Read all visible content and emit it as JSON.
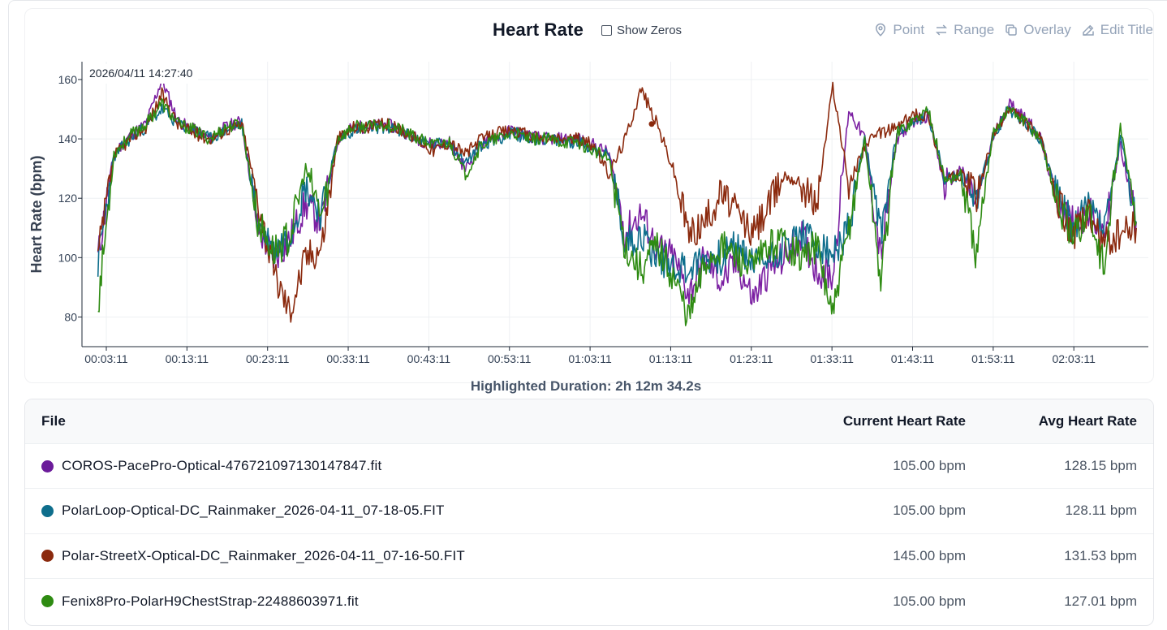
{
  "header": {
    "title": "Heart Rate",
    "show_zeros_label": "Show Zeros",
    "show_zeros_checked": false
  },
  "toolbar": {
    "point_label": "Point",
    "range_label": "Range",
    "overlay_label": "Overlay",
    "edit_title_label": "Edit Title"
  },
  "tooltip": {
    "timestamp": "2026/04/11 14:27:40"
  },
  "duration": {
    "text": "Highlighted Duration: 2h 12m 34.2s"
  },
  "chart_data": {
    "type": "line",
    "ylabel": "Heart Rate (bpm)",
    "xlabel": "",
    "ylim": [
      70,
      166
    ],
    "yticks": [
      80,
      100,
      120,
      140,
      160
    ],
    "xticks": [
      "00:03:11",
      "00:13:11",
      "00:23:11",
      "00:33:11",
      "00:43:11",
      "00:53:11",
      "01:03:11",
      "01:13:11",
      "01:23:11",
      "01:33:11",
      "01:43:11",
      "01:53:11",
      "02:03:11"
    ],
    "x_minutes": [
      2,
      4,
      6,
      8,
      10,
      12,
      14,
      16,
      18,
      20,
      22,
      24,
      26,
      28,
      30,
      32,
      34,
      36,
      38,
      40,
      42,
      44,
      46,
      48,
      50,
      52,
      54,
      56,
      58,
      60,
      62,
      64,
      66,
      68,
      70,
      72,
      74,
      76,
      78,
      80,
      82,
      84,
      86,
      88,
      90,
      92,
      94,
      96,
      98,
      100,
      102,
      104,
      106,
      108,
      110,
      112,
      114,
      116,
      118,
      120,
      122,
      124,
      126,
      128,
      130,
      132
    ],
    "grid": true,
    "legend": "table-below",
    "series": [
      {
        "name": "COROS-PacePro-Optical-4767210971301478​47.fit",
        "color": "#7b1fa2",
        "values": [
          100,
          135,
          141,
          145,
          160,
          146,
          143,
          140,
          144,
          146,
          110,
          100,
          106,
          118,
          112,
          140,
          144,
          144,
          145,
          143,
          140,
          138,
          139,
          130,
          138,
          141,
          143,
          141,
          140,
          140,
          140,
          138,
          135,
          108,
          115,
          103,
          100,
          88,
          100,
          92,
          98,
          86,
          96,
          100,
          108,
          96,
          94,
          150,
          140,
          100,
          140,
          146,
          148,
          124,
          130,
          118,
          140,
          152,
          148,
          140,
          120,
          112,
          115,
          108,
          138,
          112
        ]
      },
      {
        "name": "PolarLoop-Optical-DC_Rainmaker_2026-04-11_07-18-05.FIT",
        "color": "#0e6e8c",
        "values": [
          98,
          134,
          140,
          144,
          150,
          145,
          143,
          140,
          143,
          145,
          112,
          102,
          108,
          124,
          115,
          140,
          143,
          144,
          144,
          142,
          140,
          138,
          139,
          132,
          138,
          140,
          142,
          140,
          140,
          139,
          139,
          137,
          134,
          105,
          108,
          100,
          98,
          96,
          100,
          100,
          104,
          98,
          100,
          104,
          108,
          104,
          100,
          110,
          140,
          108,
          142,
          146,
          148,
          126,
          128,
          120,
          140,
          150,
          146,
          140,
          122,
          110,
          118,
          110,
          140,
          112
        ]
      },
      {
        "name": "Polar-StreetX-Optical-DC_Rainmaker_2026-04-11_07-16-50.FIT",
        "color": "#8b2a0e",
        "values": [
          100,
          134,
          140,
          144,
          155,
          145,
          142,
          140,
          143,
          145,
          120,
          95,
          82,
          100,
          104,
          140,
          144,
          144,
          145,
          143,
          140,
          136,
          139,
          135,
          140,
          142,
          143,
          141,
          140,
          140,
          140,
          138,
          128,
          140,
          157,
          145,
          130,
          108,
          112,
          122,
          115,
          108,
          118,
          128,
          125,
          118,
          158,
          124,
          138,
          142,
          144,
          148,
          148,
          126,
          128,
          120,
          140,
          150,
          146,
          140,
          120,
          108,
          114,
          104,
          108,
          110
        ]
      },
      {
        "name": "Fenix8Pro-PolarH9ChestStrap-22488603971.fit",
        "color": "#2e8b12",
        "values": [
          84,
          135,
          141,
          145,
          152,
          145,
          143,
          140,
          144,
          145,
          112,
          102,
          107,
          130,
          114,
          140,
          144,
          144,
          145,
          143,
          140,
          138,
          139,
          128,
          138,
          140,
          142,
          140,
          140,
          139,
          139,
          136,
          133,
          104,
          96,
          104,
          94,
          80,
          98,
          104,
          100,
          96,
          104,
          106,
          100,
          104,
          80,
          110,
          140,
          92,
          142,
          146,
          150,
          126,
          128,
          100,
          142,
          150,
          146,
          140,
          120,
          106,
          116,
          96,
          144,
          112
        ]
      }
    ]
  },
  "table": {
    "headers": {
      "file": "File",
      "current": "Current Heart Rate",
      "avg": "Avg Heart Rate"
    },
    "rows": [
      {
        "file": "COROS-PacePro-Optical-476721097130147847.fit",
        "current": "105.00 bpm",
        "avg": "128.15 bpm",
        "color": "#6b1b9a"
      },
      {
        "file": "PolarLoop-Optical-DC_Rainmaker_2026-04-11_07-18-05.FIT",
        "current": "105.00 bpm",
        "avg": "128.11 bpm",
        "color": "#0e6e8c"
      },
      {
        "file": "Polar-StreetX-Optical-DC_Rainmaker_2026-04-11_07-16-50.FIT",
        "current": "145.00 bpm",
        "avg": "131.53 bpm",
        "color": "#8b2a0e"
      },
      {
        "file": "Fenix8Pro-PolarH9ChestStrap-22488603971.fit",
        "current": "105.00 bpm",
        "avg": "127.01 bpm",
        "color": "#2e8b12"
      }
    ]
  }
}
